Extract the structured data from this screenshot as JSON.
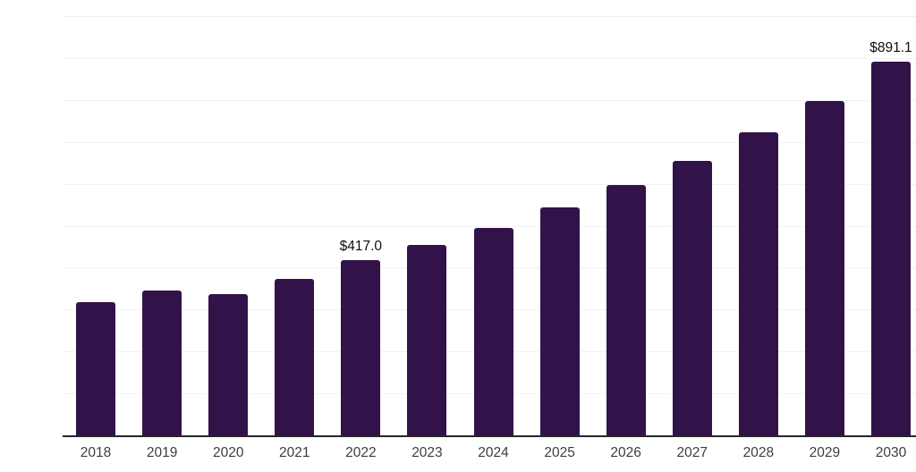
{
  "chart_data": {
    "type": "bar",
    "title": "",
    "xlabel": "",
    "ylabel": "",
    "categories": [
      "2018",
      "2019",
      "2020",
      "2021",
      "2022",
      "2023",
      "2024",
      "2025",
      "2026",
      "2027",
      "2028",
      "2029",
      "2030"
    ],
    "values": [
      318,
      345,
      336,
      373,
      417.0,
      455,
      495,
      544,
      596,
      655,
      723,
      798,
      891.1
    ],
    "data_labels": [
      null,
      null,
      null,
      null,
      "$417.0",
      null,
      null,
      null,
      null,
      null,
      null,
      null,
      "$891.1"
    ],
    "ylim": [
      0,
      1000
    ],
    "gridline_step": 100,
    "grid": true,
    "legend": false,
    "bar_color": "#321349",
    "gridline_color": "#f1f1f4",
    "axis_line_color": "#262626",
    "tick_label_color": "#3d3d3d",
    "data_label_color": "#0f0f0f"
  }
}
